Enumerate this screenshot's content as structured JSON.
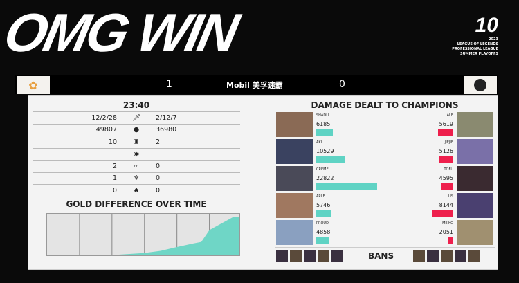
{
  "overlay_title": "OMG WIN",
  "brand": {
    "logo": "10",
    "lines": [
      "2023",
      "LEAGUE OF LEGENDS",
      "PROFESSIONAL LEAGUE",
      "SUMMER PLAYOFFS"
    ]
  },
  "scorebar": {
    "left_score": "1",
    "right_score": "0",
    "sponsor": "Mobil 美孚速霸"
  },
  "stats": {
    "time": "23:40",
    "rows": [
      {
        "icon": "sword-icon",
        "left": "12/2/28",
        "right": "2/12/7"
      },
      {
        "icon": "gold-icon",
        "left": "49807",
        "right": "36980"
      },
      {
        "icon": "tower-icon",
        "left": "10",
        "right": "2"
      },
      {
        "icon": "dragon-icon",
        "left": "",
        "right": ""
      },
      {
        "icon": "herald-icon",
        "left": "2",
        "right": "0"
      },
      {
        "icon": "baron-icon",
        "left": "1",
        "right": "0"
      },
      {
        "icon": "elder-icon",
        "left": "0",
        "right": "0"
      }
    ]
  },
  "gold_title": "GOLD DIFFERENCE OVER TIME",
  "chart_data": {
    "type": "area",
    "title": "GOLD DIFFERENCE OVER TIME",
    "x_minutes": [
      0,
      4,
      8,
      12,
      14,
      16,
      18,
      19,
      20,
      21,
      22,
      23
    ],
    "values": [
      0,
      0,
      100,
      800,
      1500,
      2800,
      4000,
      4500,
      8500,
      10000,
      11500,
      13000
    ],
    "color": "#6fd6c6",
    "grid": true
  },
  "damage": {
    "title": "DAMAGE DEALT TO CHAMPIONS",
    "max": 22822,
    "left": [
      {
        "name": "SHADLI",
        "value": 6185
      },
      {
        "name": "AKI",
        "value": 10529
      },
      {
        "name": "CREME",
        "value": 22822
      },
      {
        "name": "ARLE",
        "value": 5746
      },
      {
        "name": "PROUD",
        "value": 4858
      }
    ],
    "right": [
      {
        "name": "ALE",
        "value": 5619
      },
      {
        "name": "JIEJIE",
        "value": 5126
      },
      {
        "name": "TOFU",
        "value": 4595
      },
      {
        "name": "LIS",
        "value": 8144
      },
      {
        "name": "MEIKO",
        "value": 2051
      }
    ]
  },
  "bans_label": "BANS",
  "colors": {
    "left_team": "#5fd3c4",
    "right_team": "#ee1f4c"
  }
}
